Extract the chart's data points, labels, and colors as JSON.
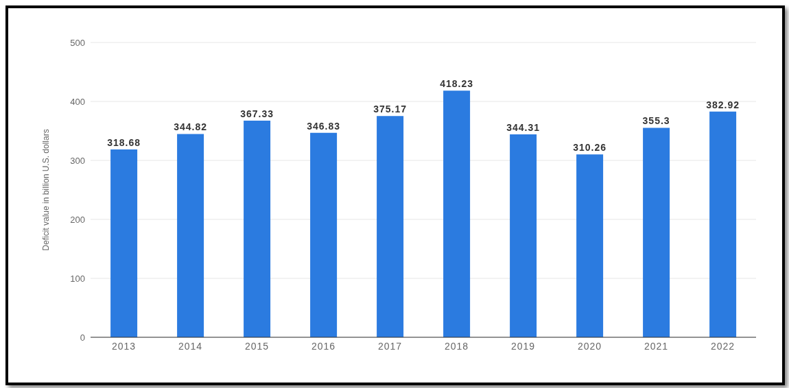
{
  "chart_data": {
    "type": "bar",
    "ylabel": "Deficit value in billion U.S. dollars",
    "categories": [
      "2013",
      "2014",
      "2015",
      "2016",
      "2017",
      "2018",
      "2019",
      "2020",
      "2021",
      "2022"
    ],
    "values": [
      318.68,
      344.82,
      367.33,
      346.83,
      375.17,
      418.23,
      344.31,
      310.26,
      355.3,
      382.92
    ],
    "color": "#2b7be0",
    "ylim": [
      0,
      500
    ],
    "yticks": [
      0,
      100,
      200,
      300,
      400,
      500
    ],
    "grid": "y",
    "data_labels": true
  }
}
